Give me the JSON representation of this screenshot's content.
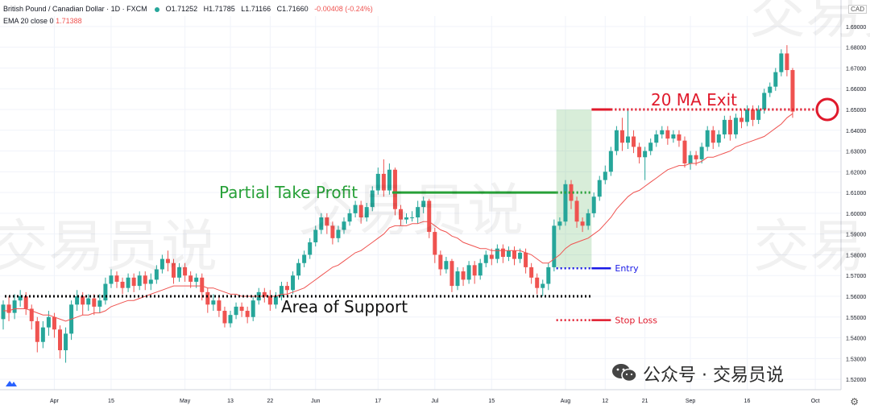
{
  "header": {
    "symbol": "British Pound / Canadian Dollar · 1D · FXCM",
    "open": "O1.71252",
    "high": "H1.71785",
    "low": "L1.71166",
    "close": "C1.71660",
    "change": "-0.00408 (-0.24%)",
    "indicator": "EMA 20 close 0",
    "indicator_value": "1.71388",
    "currency": "CAD"
  },
  "watermarks": [
    "交易员说",
    "交易员说",
    "交易员说",
    "交易员说"
  ],
  "footer": {
    "text": "公众号 · 交易员说"
  },
  "colors": {
    "up": "#26a69a",
    "down": "#ef5350",
    "ema": "#ef5350",
    "support": "#000000",
    "take_profit": "#27a038",
    "entry": "#1a1ae6",
    "stop": "#e0192b"
  },
  "chart_data": {
    "type": "candlestick",
    "ylim": [
      1.515,
      1.695
    ],
    "y_ticks": [
      "1.69000",
      "1.68000",
      "1.67000",
      "1.66000",
      "1.65000",
      "1.64000",
      "1.63000",
      "1.62000",
      "1.61000",
      "1.60000",
      "1.59000",
      "1.58000",
      "1.57000",
      "1.56000",
      "1.55000",
      "1.54000",
      "1.53000",
      "1.52000"
    ],
    "x_ticks": [
      {
        "label": "Apr",
        "index": 9
      },
      {
        "label": "15",
        "index": 19
      },
      {
        "label": "May",
        "index": 32
      },
      {
        "label": "13",
        "index": 40
      },
      {
        "label": "22",
        "index": 47
      },
      {
        "label": "Jun",
        "index": 55
      },
      {
        "label": "17",
        "index": 66
      },
      {
        "label": "Jul",
        "index": 76
      },
      {
        "label": "15",
        "index": 86
      },
      {
        "label": "Aug",
        "index": 99
      },
      {
        "label": "12",
        "index": 106
      },
      {
        "label": "21",
        "index": 113
      },
      {
        "label": "Sep",
        "index": 121
      },
      {
        "label": "16",
        "index": 131
      },
      {
        "label": "Oct",
        "index": 143
      }
    ],
    "candles": [
      [
        1.549,
        1.556,
        1.544,
        1.558
      ],
      [
        1.556,
        1.552,
        1.548,
        1.56
      ],
      [
        1.552,
        1.558,
        1.549,
        1.561
      ],
      [
        1.558,
        1.56,
        1.555,
        1.563
      ],
      [
        1.56,
        1.554,
        1.551,
        1.562
      ],
      [
        1.554,
        1.548,
        1.544,
        1.556
      ],
      [
        1.548,
        1.538,
        1.533,
        1.55
      ],
      [
        1.538,
        1.545,
        1.535,
        1.548
      ],
      [
        1.545,
        1.55,
        1.541,
        1.553
      ],
      [
        1.55,
        1.544,
        1.54,
        1.552
      ],
      [
        1.544,
        1.534,
        1.53,
        1.546
      ],
      [
        1.534,
        1.542,
        1.528,
        1.545
      ],
      [
        1.542,
        1.556,
        1.539,
        1.558
      ],
      [
        1.556,
        1.56,
        1.553,
        1.563
      ],
      [
        1.56,
        1.556,
        1.551,
        1.562
      ],
      [
        1.556,
        1.559,
        1.553,
        1.561
      ],
      [
        1.559,
        1.555,
        1.551,
        1.561
      ],
      [
        1.555,
        1.558,
        1.552,
        1.561
      ],
      [
        1.558,
        1.566,
        1.556,
        1.569
      ],
      [
        1.566,
        1.57,
        1.564,
        1.573
      ],
      [
        1.57,
        1.567,
        1.564,
        1.572
      ],
      [
        1.567,
        1.564,
        1.561,
        1.569
      ],
      [
        1.564,
        1.569,
        1.562,
        1.571
      ],
      [
        1.569,
        1.565,
        1.562,
        1.571
      ],
      [
        1.565,
        1.57,
        1.563,
        1.572
      ],
      [
        1.57,
        1.566,
        1.563,
        1.572
      ],
      [
        1.566,
        1.568,
        1.563,
        1.571
      ],
      [
        1.568,
        1.573,
        1.566,
        1.575
      ],
      [
        1.573,
        1.578,
        1.571,
        1.58
      ],
      [
        1.578,
        1.576,
        1.572,
        1.582
      ],
      [
        1.576,
        1.569,
        1.566,
        1.578
      ],
      [
        1.569,
        1.574,
        1.567,
        1.576
      ],
      [
        1.574,
        1.57,
        1.567,
        1.576
      ],
      [
        1.57,
        1.567,
        1.564,
        1.572
      ],
      [
        1.567,
        1.569,
        1.564,
        1.571
      ],
      [
        1.569,
        1.562,
        1.558,
        1.571
      ],
      [
        1.562,
        1.556,
        1.552,
        1.564
      ],
      [
        1.556,
        1.558,
        1.553,
        1.561
      ],
      [
        1.558,
        1.553,
        1.55,
        1.56
      ],
      [
        1.553,
        1.547,
        1.545,
        1.555
      ],
      [
        1.547,
        1.551,
        1.545,
        1.553
      ],
      [
        1.551,
        1.555,
        1.549,
        1.557
      ],
      [
        1.555,
        1.553,
        1.55,
        1.557
      ],
      [
        1.553,
        1.55,
        1.547,
        1.555
      ],
      [
        1.55,
        1.558,
        1.548,
        1.56
      ],
      [
        1.558,
        1.562,
        1.556,
        1.564
      ],
      [
        1.562,
        1.56,
        1.557,
        1.564
      ],
      [
        1.56,
        1.556,
        1.553,
        1.563
      ],
      [
        1.556,
        1.56,
        1.554,
        1.562
      ],
      [
        1.56,
        1.565,
        1.558,
        1.567
      ],
      [
        1.565,
        1.563,
        1.56,
        1.567
      ],
      [
        1.563,
        1.57,
        1.561,
        1.572
      ],
      [
        1.57,
        1.576,
        1.568,
        1.578
      ],
      [
        1.576,
        1.58,
        1.574,
        1.582
      ],
      [
        1.58,
        1.586,
        1.578,
        1.588
      ],
      [
        1.586,
        1.592,
        1.584,
        1.594
      ],
      [
        1.592,
        1.598,
        1.59,
        1.6
      ],
      [
        1.598,
        1.594,
        1.59,
        1.6
      ],
      [
        1.594,
        1.588,
        1.585,
        1.596
      ],
      [
        1.588,
        1.592,
        1.586,
        1.594
      ],
      [
        1.592,
        1.596,
        1.59,
        1.598
      ],
      [
        1.596,
        1.6,
        1.594,
        1.602
      ],
      [
        1.6,
        1.604,
        1.598,
        1.606
      ],
      [
        1.604,
        1.598,
        1.595,
        1.606
      ],
      [
        1.598,
        1.603,
        1.596,
        1.605
      ],
      [
        1.603,
        1.611,
        1.601,
        1.613
      ],
      [
        1.611,
        1.619,
        1.609,
        1.622
      ],
      [
        1.619,
        1.611,
        1.608,
        1.626
      ],
      [
        1.611,
        1.621,
        1.609,
        1.624
      ],
      [
        1.621,
        1.602,
        1.599,
        1.622
      ],
      [
        1.602,
        1.597,
        1.594,
        1.604
      ],
      [
        1.597,
        1.598,
        1.595,
        1.6
      ],
      [
        1.598,
        1.598,
        1.596,
        1.601
      ],
      [
        1.598,
        1.603,
        1.595,
        1.606
      ],
      [
        1.603,
        1.606,
        1.6,
        1.608
      ],
      [
        1.606,
        1.591,
        1.588,
        1.607
      ],
      [
        1.591,
        1.58,
        1.576,
        1.593
      ],
      [
        1.58,
        1.573,
        1.57,
        1.582
      ],
      [
        1.573,
        1.577,
        1.571,
        1.579
      ],
      [
        1.577,
        1.565,
        1.562,
        1.578
      ],
      [
        1.565,
        1.572,
        1.563,
        1.574
      ],
      [
        1.572,
        1.568,
        1.565,
        1.574
      ],
      [
        1.568,
        1.575,
        1.566,
        1.577
      ],
      [
        1.575,
        1.57,
        1.566,
        1.577
      ],
      [
        1.57,
        1.576,
        1.568,
        1.578
      ],
      [
        1.576,
        1.58,
        1.574,
        1.582
      ],
      [
        1.58,
        1.578,
        1.575,
        1.583
      ],
      [
        1.578,
        1.583,
        1.576,
        1.585
      ],
      [
        1.583,
        1.579,
        1.576,
        1.585
      ],
      [
        1.579,
        1.582,
        1.577,
        1.584
      ],
      [
        1.582,
        1.578,
        1.575,
        1.584
      ],
      [
        1.578,
        1.581,
        1.576,
        1.583
      ],
      [
        1.581,
        1.574,
        1.571,
        1.583
      ],
      [
        1.574,
        1.569,
        1.566,
        1.576
      ],
      [
        1.569,
        1.564,
        1.561,
        1.571
      ],
      [
        1.564,
        1.566,
        1.56,
        1.568
      ],
      [
        1.566,
        1.574,
        1.563,
        1.576
      ],
      [
        1.574,
        1.594,
        1.572,
        1.597
      ],
      [
        1.594,
        1.596,
        1.592,
        1.598
      ],
      [
        1.596,
        1.614,
        1.594,
        1.616
      ],
      [
        1.614,
        1.606,
        1.602,
        1.616
      ],
      [
        1.606,
        1.596,
        1.593,
        1.608
      ],
      [
        1.596,
        1.594,
        1.591,
        1.598
      ],
      [
        1.594,
        1.6,
        1.592,
        1.602
      ],
      [
        1.6,
        1.608,
        1.598,
        1.61
      ],
      [
        1.608,
        1.616,
        1.606,
        1.618
      ],
      [
        1.616,
        1.62,
        1.614,
        1.623
      ],
      [
        1.62,
        1.63,
        1.618,
        1.632
      ],
      [
        1.63,
        1.64,
        1.628,
        1.642
      ],
      [
        1.64,
        1.634,
        1.63,
        1.646
      ],
      [
        1.634,
        1.637,
        1.631,
        1.65
      ],
      [
        1.637,
        1.632,
        1.629,
        1.64
      ],
      [
        1.632,
        1.627,
        1.624,
        1.634
      ],
      [
        1.627,
        1.63,
        1.616,
        1.632
      ],
      [
        1.63,
        1.634,
        1.628,
        1.636
      ],
      [
        1.634,
        1.638,
        1.632,
        1.64
      ],
      [
        1.638,
        1.64,
        1.636,
        1.642
      ],
      [
        1.64,
        1.636,
        1.633,
        1.642
      ],
      [
        1.636,
        1.638,
        1.634,
        1.64
      ],
      [
        1.638,
        1.635,
        1.632,
        1.64
      ],
      [
        1.635,
        1.624,
        1.622,
        1.637
      ],
      [
        1.624,
        1.628,
        1.621,
        1.63
      ],
      [
        1.628,
        1.626,
        1.623,
        1.63
      ],
      [
        1.626,
        1.632,
        1.624,
        1.634
      ],
      [
        1.632,
        1.64,
        1.63,
        1.642
      ],
      [
        1.64,
        1.634,
        1.631,
        1.642
      ],
      [
        1.634,
        1.638,
        1.632,
        1.64
      ],
      [
        1.638,
        1.645,
        1.636,
        1.647
      ],
      [
        1.645,
        1.638,
        1.635,
        1.647
      ],
      [
        1.638,
        1.646,
        1.636,
        1.648
      ],
      [
        1.646,
        1.644,
        1.641,
        1.65
      ],
      [
        1.644,
        1.65,
        1.642,
        1.652
      ],
      [
        1.65,
        1.645,
        1.642,
        1.652
      ],
      [
        1.645,
        1.65,
        1.643,
        1.652
      ],
      [
        1.65,
        1.658,
        1.648,
        1.66
      ],
      [
        1.658,
        1.661,
        1.656,
        1.663
      ],
      [
        1.661,
        1.668,
        1.659,
        1.67
      ],
      [
        1.668,
        1.677,
        1.666,
        1.679
      ],
      [
        1.677,
        1.669,
        1.666,
        1.681
      ],
      [
        1.669,
        1.649,
        1.646,
        1.67
      ]
    ],
    "ema": [
      1.553,
      1.553,
      1.554,
      1.554,
      1.554,
      1.553,
      1.552,
      1.551,
      1.551,
      1.55,
      1.549,
      1.548,
      1.549,
      1.55,
      1.551,
      1.551,
      1.552,
      1.552,
      1.553,
      1.555,
      1.556,
      1.557,
      1.558,
      1.558,
      1.559,
      1.56,
      1.561,
      1.562,
      1.563,
      1.564,
      1.565,
      1.565,
      1.565,
      1.565,
      1.565,
      1.565,
      1.564,
      1.564,
      1.563,
      1.562,
      1.561,
      1.561,
      1.56,
      1.56,
      1.56,
      1.56,
      1.56,
      1.56,
      1.56,
      1.561,
      1.561,
      1.562,
      1.563,
      1.564,
      1.566,
      1.568,
      1.57,
      1.572,
      1.574,
      1.575,
      1.577,
      1.579,
      1.581,
      1.582,
      1.584,
      1.586,
      1.588,
      1.59,
      1.593,
      1.594,
      1.594,
      1.594,
      1.595,
      1.595,
      1.596,
      1.596,
      1.594,
      1.592,
      1.591,
      1.589,
      1.588,
      1.586,
      1.585,
      1.584,
      1.583,
      1.583,
      1.582,
      1.582,
      1.582,
      1.582,
      1.582,
      1.582,
      1.581,
      1.58,
      1.578,
      1.576,
      1.576,
      1.578,
      1.58,
      1.583,
      1.585,
      1.586,
      1.587,
      1.588,
      1.59,
      1.592,
      1.595,
      1.598,
      1.602,
      1.605,
      1.608,
      1.61,
      1.611,
      1.613,
      1.615,
      1.617,
      1.619,
      1.621,
      1.622,
      1.623,
      1.623,
      1.624,
      1.624,
      1.625,
      1.627,
      1.627,
      1.628,
      1.629,
      1.63,
      1.632,
      1.633,
      1.634,
      1.635,
      1.636,
      1.637,
      1.639,
      1.641,
      1.643,
      1.646,
      1.648
    ],
    "annotations": {
      "support": {
        "price": 1.56,
        "label": "Area of Support"
      },
      "take_profit": {
        "price": 1.61,
        "label": "Partial Take Profit"
      },
      "entry": {
        "price": 1.5735,
        "label": "Entry"
      },
      "stop_loss": {
        "price": 1.5485,
        "label": "Stop Loss"
      },
      "ma_exit": {
        "price": 1.65,
        "label": "20 MA Exit"
      },
      "target_zone": {
        "from": 1.5735,
        "to": 1.65
      },
      "risk_zone": {
        "from": 1.5485,
        "to": 1.5735
      }
    }
  }
}
